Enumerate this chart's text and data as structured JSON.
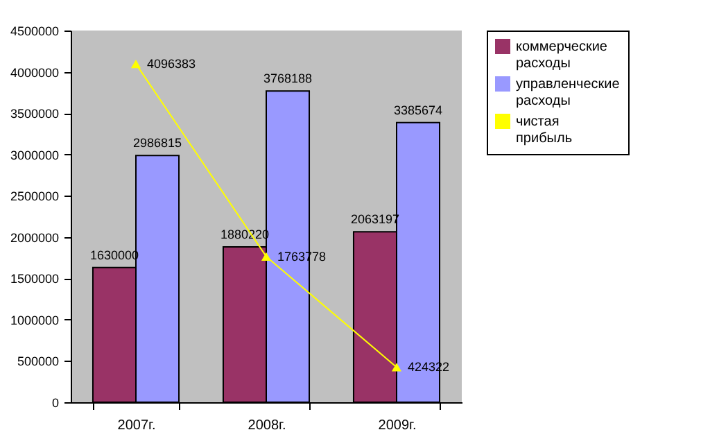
{
  "chart_data": {
    "type": "bar",
    "categories": [
      "2007г.",
      "2008г.",
      "2009г."
    ],
    "series": [
      {
        "name": "коммерческие расходы",
        "color": "#993366",
        "values": [
          1630000,
          1880220,
          2063197
        ]
      },
      {
        "name": "управленческие расходы",
        "color": "#9999ff",
        "values": [
          2986815,
          3768188,
          3385674
        ]
      },
      {
        "name": "чистая прибыль",
        "type": "line",
        "color": "#ffff00",
        "values": [
          4096383,
          1763778,
          424322
        ]
      }
    ],
    "ylim": [
      0,
      4500000
    ],
    "yticks": [
      0,
      500000,
      1000000,
      1500000,
      2000000,
      2500000,
      3000000,
      3500000,
      4000000,
      4500000
    ],
    "grid": false,
    "legend": "right",
    "marker": "triangle",
    "data_labels": true
  }
}
